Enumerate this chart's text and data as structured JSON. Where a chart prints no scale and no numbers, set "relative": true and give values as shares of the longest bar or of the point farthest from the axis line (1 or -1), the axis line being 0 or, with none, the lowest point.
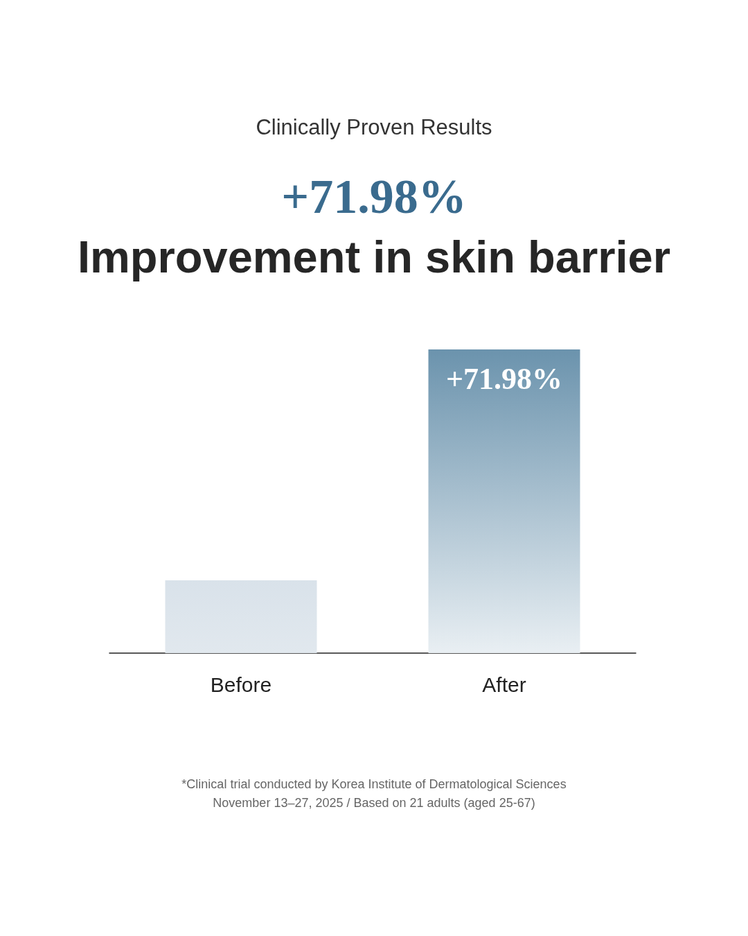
{
  "chart_data": {
    "type": "bar",
    "subtitle": "Clinically Proven Results",
    "title": "Improvement in skin barrier",
    "annotations": [
      "+71.98%",
      "*Clinical trial conducted by Korea Institute of Dermatological Sciences",
      "November 13–27, 2025 / Based on 21 adults (aged 25-67)",
      {
        "text": "+71.98%",
        "x": "After",
        "y": 1
      }
    ],
    "categories": [
      "Before",
      "After"
    ],
    "values": [
      0.24,
      1
    ],
    "colors": [
      "#d9e2ea",
      "#6b93ad"
    ],
    "relative": true
  }
}
